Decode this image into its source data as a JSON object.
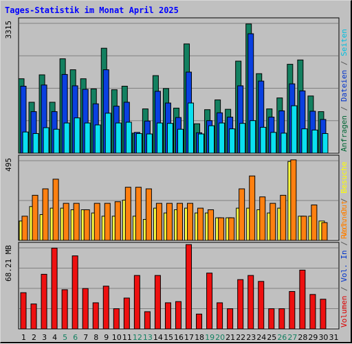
{
  "chart_data": {
    "type": "bar",
    "title": "Tages-Statistik im Monat April 2025",
    "days": [
      {
        "label": "1",
        "weekend": false
      },
      {
        "label": "2",
        "weekend": false
      },
      {
        "label": "3",
        "weekend": false
      },
      {
        "label": "4",
        "weekend": false
      },
      {
        "label": "5",
        "weekend": true
      },
      {
        "label": "6",
        "weekend": true
      },
      {
        "label": "7",
        "weekend": false
      },
      {
        "label": "8",
        "weekend": false
      },
      {
        "label": "9",
        "weekend": false
      },
      {
        "label": "10",
        "weekend": false
      },
      {
        "label": "11",
        "weekend": false
      },
      {
        "label": "12",
        "weekend": true
      },
      {
        "label": "13",
        "weekend": true
      },
      {
        "label": "14",
        "weekend": false
      },
      {
        "label": "15",
        "weekend": false
      },
      {
        "label": "16",
        "weekend": false
      },
      {
        "label": "17",
        "weekend": false
      },
      {
        "label": "18",
        "weekend": false
      },
      {
        "label": "19",
        "weekend": true
      },
      {
        "label": "20",
        "weekend": true
      },
      {
        "label": "21",
        "weekend": false
      },
      {
        "label": "22",
        "weekend": false
      },
      {
        "label": "23",
        "weekend": false
      },
      {
        "label": "24",
        "weekend": false
      },
      {
        "label": "25",
        "weekend": false
      },
      {
        "label": "26",
        "weekend": true
      },
      {
        "label": "27",
        "weekend": true
      },
      {
        "label": "28",
        "weekend": false
      },
      {
        "label": "29",
        "weekend": false
      },
      {
        "label": "30",
        "weekend": false
      },
      {
        "label": "31",
        "weekend": false
      }
    ],
    "panels": [
      {
        "max_label": "3315",
        "ymax": 3315,
        "right_label": [
          {
            "text": "Anfragen",
            "color": "#006633"
          },
          {
            "text": " / ",
            "color": "#555555"
          },
          {
            "text": "Dateien",
            "color": "#0033cc"
          },
          {
            "text": " / ",
            "color": "#555555"
          },
          {
            "text": "Seiten",
            "color": "#00c0e0"
          }
        ],
        "series": [
          {
            "name": "Anfragen",
            "color": "#138060",
            "values": [
              1900,
              1300,
              2000,
              1300,
              2410,
              2130,
              1900,
              1640,
              2680,
              1620,
              1710,
              510,
              1130,
              1980,
              1650,
              1150,
              2790,
              750,
              1110,
              1360,
              1120,
              2350,
              3300,
              2030,
              1130,
              1410,
              2270,
              2380,
              1460,
              1060,
              0
            ]
          },
          {
            "name": "Dateien",
            "color": "#0a40e0",
            "values": [
              1710,
              1060,
              1740,
              1060,
              2010,
              1720,
              1630,
              1260,
              2130,
              1200,
              1300,
              530,
              820,
              1580,
              1280,
              910,
              2070,
              520,
              830,
              1030,
              920,
              1720,
              3050,
              1840,
              920,
              1080,
              1770,
              1590,
              1070,
              860,
              0
            ]
          },
          {
            "name": "Seiten",
            "color": "#0ae0f0",
            "values": [
              540,
              500,
              650,
              610,
              770,
              900,
              770,
              720,
              1020,
              770,
              790,
              500,
              490,
              770,
              760,
              610,
              1280,
              490,
              700,
              770,
              620,
              760,
              830,
              660,
              530,
              510,
              1210,
              620,
              590,
              500,
              0
            ]
          }
        ]
      },
      {
        "max_label": "495",
        "ymax": 495,
        "right_label": [
          {
            "text": "Rechner",
            "color": "#ff8000"
          },
          {
            "text": " / ",
            "color": "#555555"
          },
          {
            "text": "Besuche",
            "color": "#ffff00"
          }
        ],
        "series": [
          {
            "name": "Besuche",
            "color": "#ffff40",
            "values": [
              120,
              210,
              160,
              200,
              200,
              190,
              190,
              170,
              150,
              150,
              250,
              150,
              130,
              200,
              170,
              190,
              200,
              170,
              170,
              140,
              140,
              200,
              200,
              190,
              170,
              200,
              490,
              150,
              150,
              120,
              0
            ]
          },
          {
            "name": "Rechner",
            "color": "#ff8010",
            "values": [
              150,
              280,
              320,
              380,
              230,
              230,
              190,
              230,
              230,
              240,
              330,
              330,
              320,
              230,
              230,
              230,
              230,
              200,
              190,
              140,
              140,
              320,
              400,
              270,
              230,
              280,
              500,
              150,
              220,
              110,
              0
            ]
          }
        ]
      },
      {
        "max_label": "68.21 MB",
        "ymax": 68.21,
        "right_label": [
          {
            "text": "Volumen",
            "color": "#dd0000"
          },
          {
            "text": " / ",
            "color": "#555555"
          },
          {
            "text": "Vol. In",
            "color": "#0033cc"
          },
          {
            "text": " / ",
            "color": "#555555"
          },
          {
            "text": "Vol. Out",
            "color": "#ff8000"
          }
        ],
        "series": [
          {
            "name": "Volumen",
            "color": "#ee1010",
            "values": [
              30.5,
              21.0,
              46.0,
              68.0,
              33.0,
              61.5,
              34.0,
              22.0,
              36.0,
              17.0,
              26.0,
              45.0,
              14.5,
              45.0,
              22.0,
              23.0,
              71.0,
              12.5,
              47.0,
              22.0,
              17.0,
              41.5,
              45.0,
              40.0,
              17.0,
              17.0,
              31.5,
              49.5,
              29.0,
              25.0,
              0
            ]
          }
        ]
      }
    ]
  }
}
